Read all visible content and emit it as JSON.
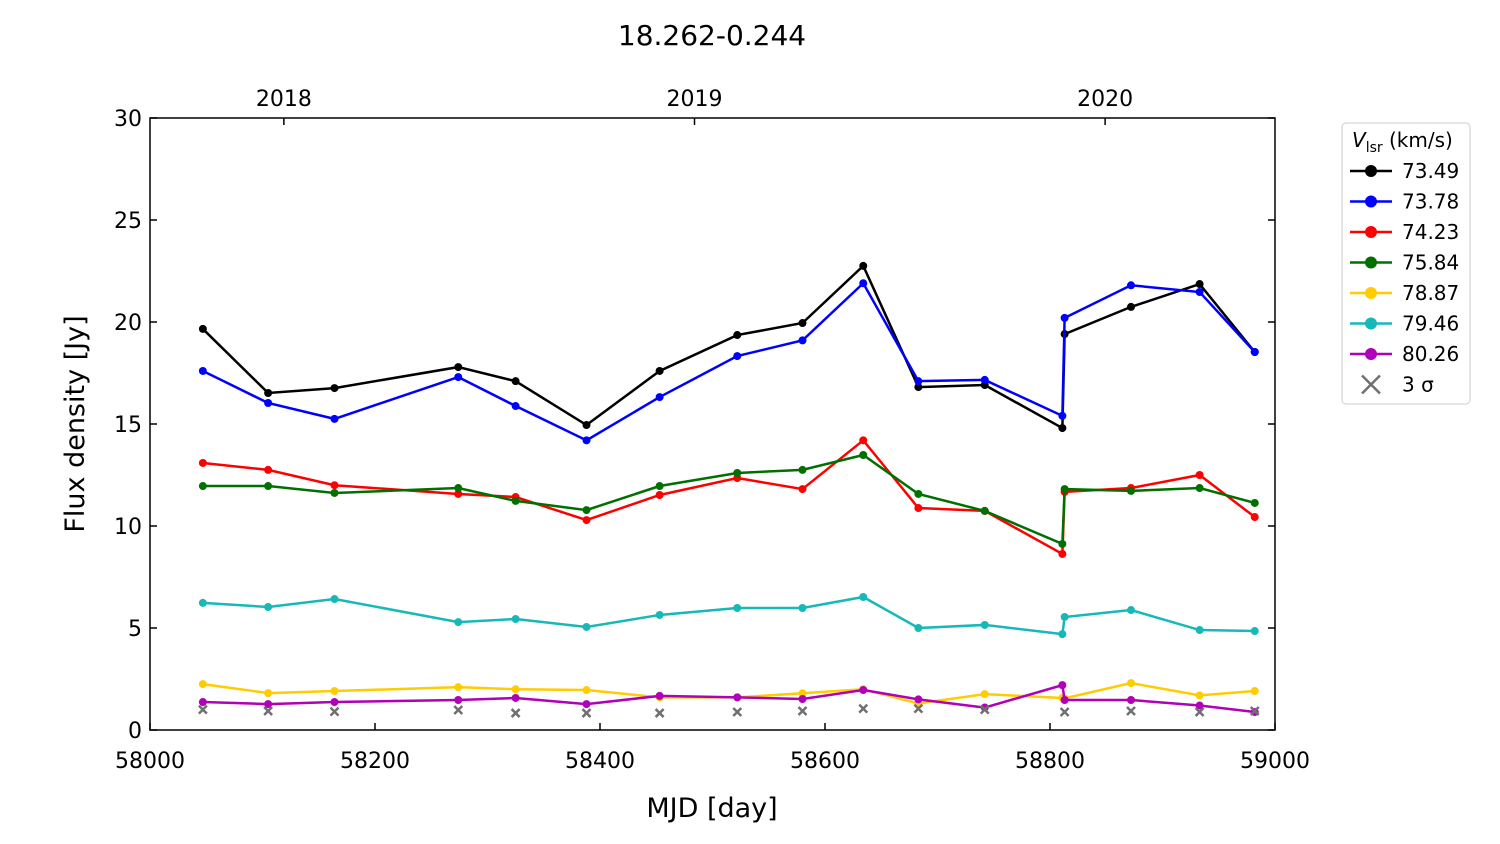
{
  "chart_data": {
    "type": "line",
    "title": "18.262-0.244",
    "xlabel": "MJD [day]",
    "ylabel": "Flux density [Jy]",
    "xlim": [
      58000,
      59000
    ],
    "ylim": [
      0,
      30
    ],
    "xticks": [
      58000,
      58200,
      58400,
      58600,
      58800,
      59000
    ],
    "yticks": [
      0,
      5,
      10,
      15,
      20,
      25,
      30
    ],
    "top_axis": {
      "ticks": [
        {
          "label": "2018",
          "mjd": 58119
        },
        {
          "label": "2019",
          "mjd": 58484
        },
        {
          "label": "2020",
          "mjd": 58849
        }
      ]
    },
    "grid": false,
    "legend": {
      "title_main": "V",
      "title_sub": "lsr",
      "title_unit": " (km/s)",
      "placement": "outside-right-top"
    },
    "x": [
      58047,
      58105,
      58164,
      58274,
      58325,
      58388,
      58453,
      58522,
      58580,
      58634,
      58683,
      58742,
      58811,
      58813,
      58872,
      58933,
      58982
    ],
    "series": [
      {
        "name": "73.49",
        "color": "#000000",
        "values": [
          19.66,
          16.52,
          16.76,
          17.79,
          17.1,
          14.95,
          17.6,
          19.36,
          19.95,
          22.75,
          16.81,
          16.91,
          14.8,
          19.41,
          20.74,
          21.86,
          18.53
        ]
      },
      {
        "name": "73.78",
        "color": "#0000ff",
        "values": [
          17.6,
          16.03,
          15.25,
          17.3,
          15.88,
          14.2,
          16.32,
          18.33,
          19.1,
          21.9,
          17.1,
          17.16,
          15.4,
          20.2,
          21.8,
          21.47,
          18.53
        ]
      },
      {
        "name": "74.23",
        "color": "#ff0000",
        "values": [
          13.09,
          12.75,
          12.0,
          11.57,
          11.42,
          10.29,
          11.52,
          12.35,
          11.81,
          14.2,
          10.88,
          10.74,
          8.63,
          11.67,
          11.86,
          12.5,
          10.44
        ]
      },
      {
        "name": "75.84",
        "color": "#007000",
        "values": [
          11.96,
          11.96,
          11.62,
          11.86,
          11.23,
          10.78,
          11.96,
          12.6,
          12.75,
          13.48,
          11.57,
          10.74,
          9.12,
          11.81,
          11.72,
          11.86,
          11.13
        ]
      },
      {
        "name": "78.87",
        "color": "#ffcc00",
        "values": [
          2.25,
          1.81,
          1.91,
          2.1,
          2.0,
          1.96,
          1.6,
          1.6,
          1.8,
          2.0,
          1.3,
          1.76,
          1.57,
          1.55,
          2.3,
          1.7,
          1.91
        ]
      },
      {
        "name": "79.46",
        "color": "#17b8b8",
        "values": [
          6.23,
          6.03,
          6.42,
          5.29,
          5.44,
          5.05,
          5.64,
          5.98,
          5.98,
          6.52,
          5.0,
          5.15,
          4.7,
          5.54,
          5.88,
          4.9,
          4.85
        ]
      },
      {
        "name": "80.26",
        "color": "#b000b8",
        "values": [
          1.37,
          1.27,
          1.37,
          1.47,
          1.57,
          1.27,
          1.67,
          1.6,
          1.52,
          1.96,
          1.5,
          1.1,
          2.2,
          1.47,
          1.47,
          1.2,
          0.88
        ]
      }
    ],
    "sigma": {
      "name": "3 σ",
      "color": "#707070",
      "x": [
        58047,
        58105,
        58164,
        58274,
        58325,
        58388,
        58453,
        58522,
        58580,
        58634,
        58683,
        58742,
        58813,
        58872,
        58933,
        58982
      ],
      "values": [
        1.0,
        0.93,
        0.9,
        0.98,
        0.83,
        0.83,
        0.83,
        0.88,
        0.93,
        1.05,
        1.05,
        1.0,
        0.88,
        0.93,
        0.88,
        0.93
      ]
    }
  }
}
